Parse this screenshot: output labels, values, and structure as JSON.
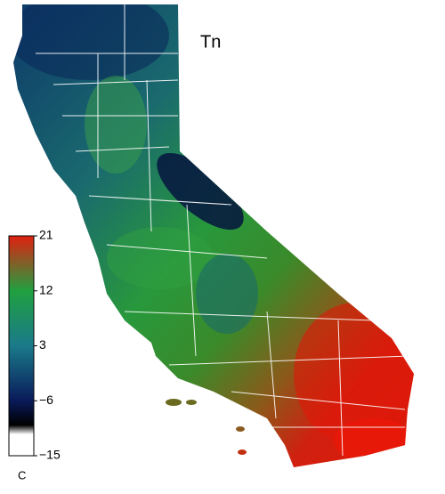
{
  "title": "Tn",
  "colorbar": {
    "unit": "C",
    "range": [
      -15,
      21
    ],
    "ticks": [
      21,
      12,
      3,
      {
        "value": -6,
        "label": "−6"
      },
      {
        "value": -15,
        "label": "−15"
      }
    ],
    "colors": [
      "#ffffff",
      "#ffffff",
      "#000000",
      "#0a1a5a",
      "#1a7a8a",
      "#20a040",
      "#e02010"
    ],
    "stops": [
      -15,
      -11.5,
      -10,
      -6,
      3,
      12,
      21
    ]
  }
}
